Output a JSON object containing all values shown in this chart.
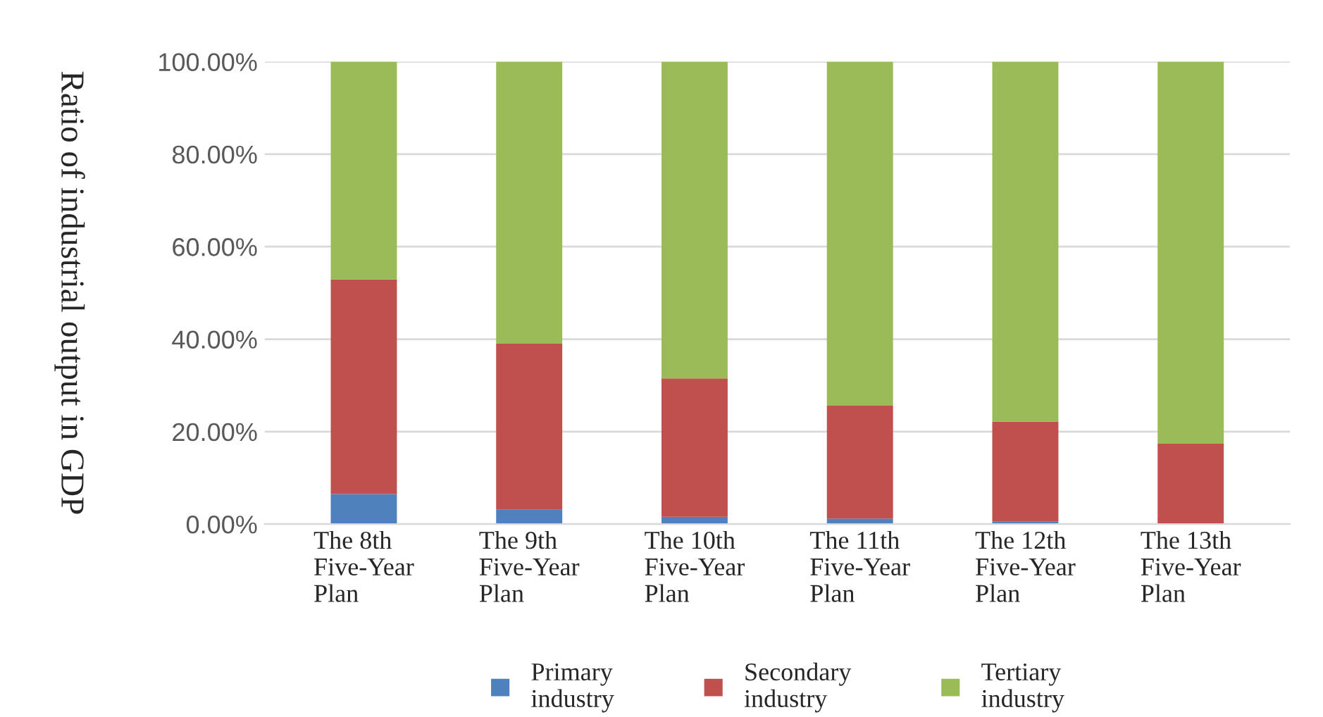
{
  "chart_data": {
    "type": "bar",
    "stacked": true,
    "ylabel": "Ratio of industrial output in GDP",
    "categories": [
      "The 8th\nFive-Year\nPlan",
      "The 9th\nFive-Year\nPlan",
      "The 10th\nFive-Year\nPlan",
      "The 11th\nFive-Year\nPlan",
      "The 12th\nFive-Year\nPlan",
      "The 13th\nFive-Year\nPlan"
    ],
    "series": [
      {
        "name": "Primary\nindustry",
        "color": "#4f81bd",
        "values": [
          6.5,
          3.1,
          1.6,
          1.2,
          0.6,
          0
        ]
      },
      {
        "name": "Secondary\nindustry",
        "color": "#c0504d",
        "values": [
          46.4,
          35.9,
          29.9,
          24.4,
          21.6,
          17.4
        ]
      },
      {
        "name": "Tertiary\nindustry",
        "color": "#9bbb59",
        "values": [
          47.1,
          61.0,
          68.5,
          74.4,
          77.8,
          82.6
        ]
      }
    ],
    "ylim": [
      0,
      100
    ],
    "yticks": [
      {
        "value": 0,
        "label": "0.00%"
      },
      {
        "value": 20,
        "label": "20.00%"
      },
      {
        "value": 40,
        "label": "40.00%"
      },
      {
        "value": 60,
        "label": "60.00%"
      },
      {
        "value": 80,
        "label": "80.00%"
      },
      {
        "value": 100,
        "label": "100.00%"
      }
    ],
    "grid": "y",
    "legend": "bottom"
  }
}
